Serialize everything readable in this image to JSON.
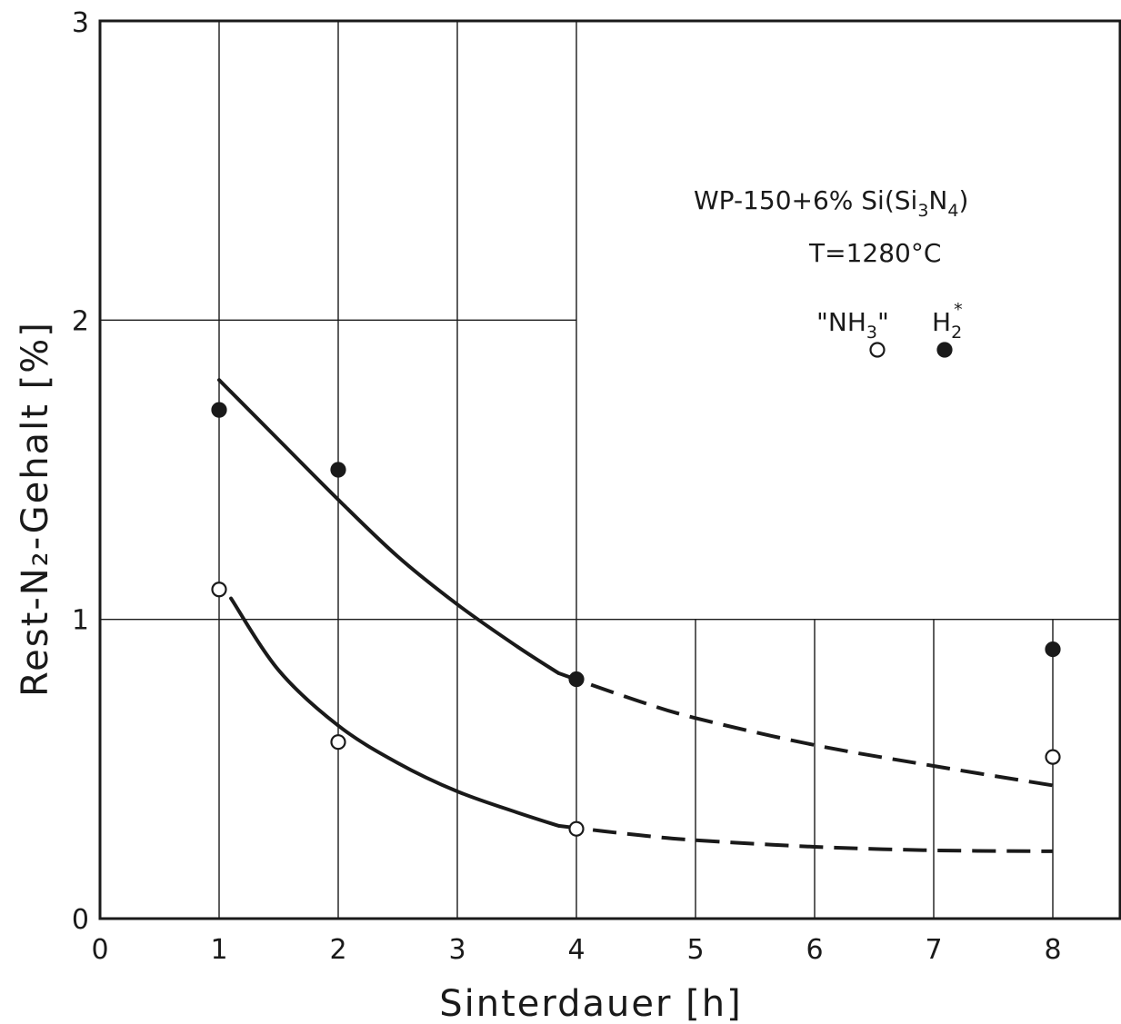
{
  "chart_data": {
    "type": "scatter",
    "xlabel": "Sinterdauer [h]",
    "ylabel": "Rest-N₂-Gehalt [%]",
    "x_ticks": [
      "0",
      "1",
      "2",
      "3",
      "4",
      "5",
      "6",
      "7",
      "8"
    ],
    "x_tick_positions": [
      0,
      1,
      2,
      3,
      4,
      5,
      6,
      7,
      8
    ],
    "y_ticks": [
      "0",
      "1",
      "2",
      "3"
    ],
    "y_tick_positions": [
      0,
      1,
      2,
      3
    ],
    "xlim": [
      0,
      8.5
    ],
    "ylim": [
      0,
      3
    ],
    "grid": true,
    "legend_position": "top-right",
    "annotations": {
      "material": {
        "base": "WP-150+6% Si(Si",
        "sub1": "3",
        "mid": "N",
        "sub2": "4",
        "end": ")"
      },
      "temperature": "T=1280°C",
      "legend_nh3": {
        "base": "\"NH",
        "sub": "3",
        "end": "\""
      },
      "legend_h2": {
        "base": "H",
        "sub": "2",
        "sup": "*"
      }
    },
    "series": [
      {
        "name": "\"NH₃\"",
        "marker": "open-circle",
        "color": "#1a1a1a",
        "points": [
          {
            "x": 1,
            "y": 1.1
          },
          {
            "x": 2,
            "y": 0.59
          },
          {
            "x": 4,
            "y": 0.3
          },
          {
            "x": 8,
            "y": 0.54
          }
        ],
        "fit_curve": {
          "solid": [
            [
              1.1,
              1.07
            ],
            [
              1.5,
              0.83
            ],
            [
              2,
              0.645
            ],
            [
              2.5,
              0.52
            ],
            [
              3,
              0.425
            ],
            [
              3.5,
              0.355
            ],
            [
              3.85,
              0.31
            ]
          ],
          "dashed": [
            [
              3.85,
              0.31
            ],
            [
              4.5,
              0.28
            ],
            [
              5,
              0.262
            ],
            [
              6,
              0.24
            ],
            [
              7,
              0.228
            ],
            [
              8,
              0.225
            ]
          ]
        }
      },
      {
        "name": "H₂*",
        "marker": "filled-circle",
        "color": "#1a1a1a",
        "points": [
          {
            "x": 1,
            "y": 1.7
          },
          {
            "x": 2,
            "y": 1.5
          },
          {
            "x": 4,
            "y": 0.8
          },
          {
            "x": 8,
            "y": 0.9
          }
        ],
        "fit_curve": {
          "solid": [
            [
              1,
              1.8
            ],
            [
              1.5,
              1.6
            ],
            [
              2,
              1.4
            ],
            [
              2.5,
              1.21
            ],
            [
              3,
              1.05
            ],
            [
              3.5,
              0.91
            ],
            [
              3.85,
              0.82
            ]
          ],
          "dashed": [
            [
              3.85,
              0.82
            ],
            [
              4.5,
              0.73
            ],
            [
              5,
              0.67
            ],
            [
              6,
              0.58
            ],
            [
              7,
              0.51
            ],
            [
              8,
              0.445
            ]
          ]
        }
      }
    ]
  }
}
